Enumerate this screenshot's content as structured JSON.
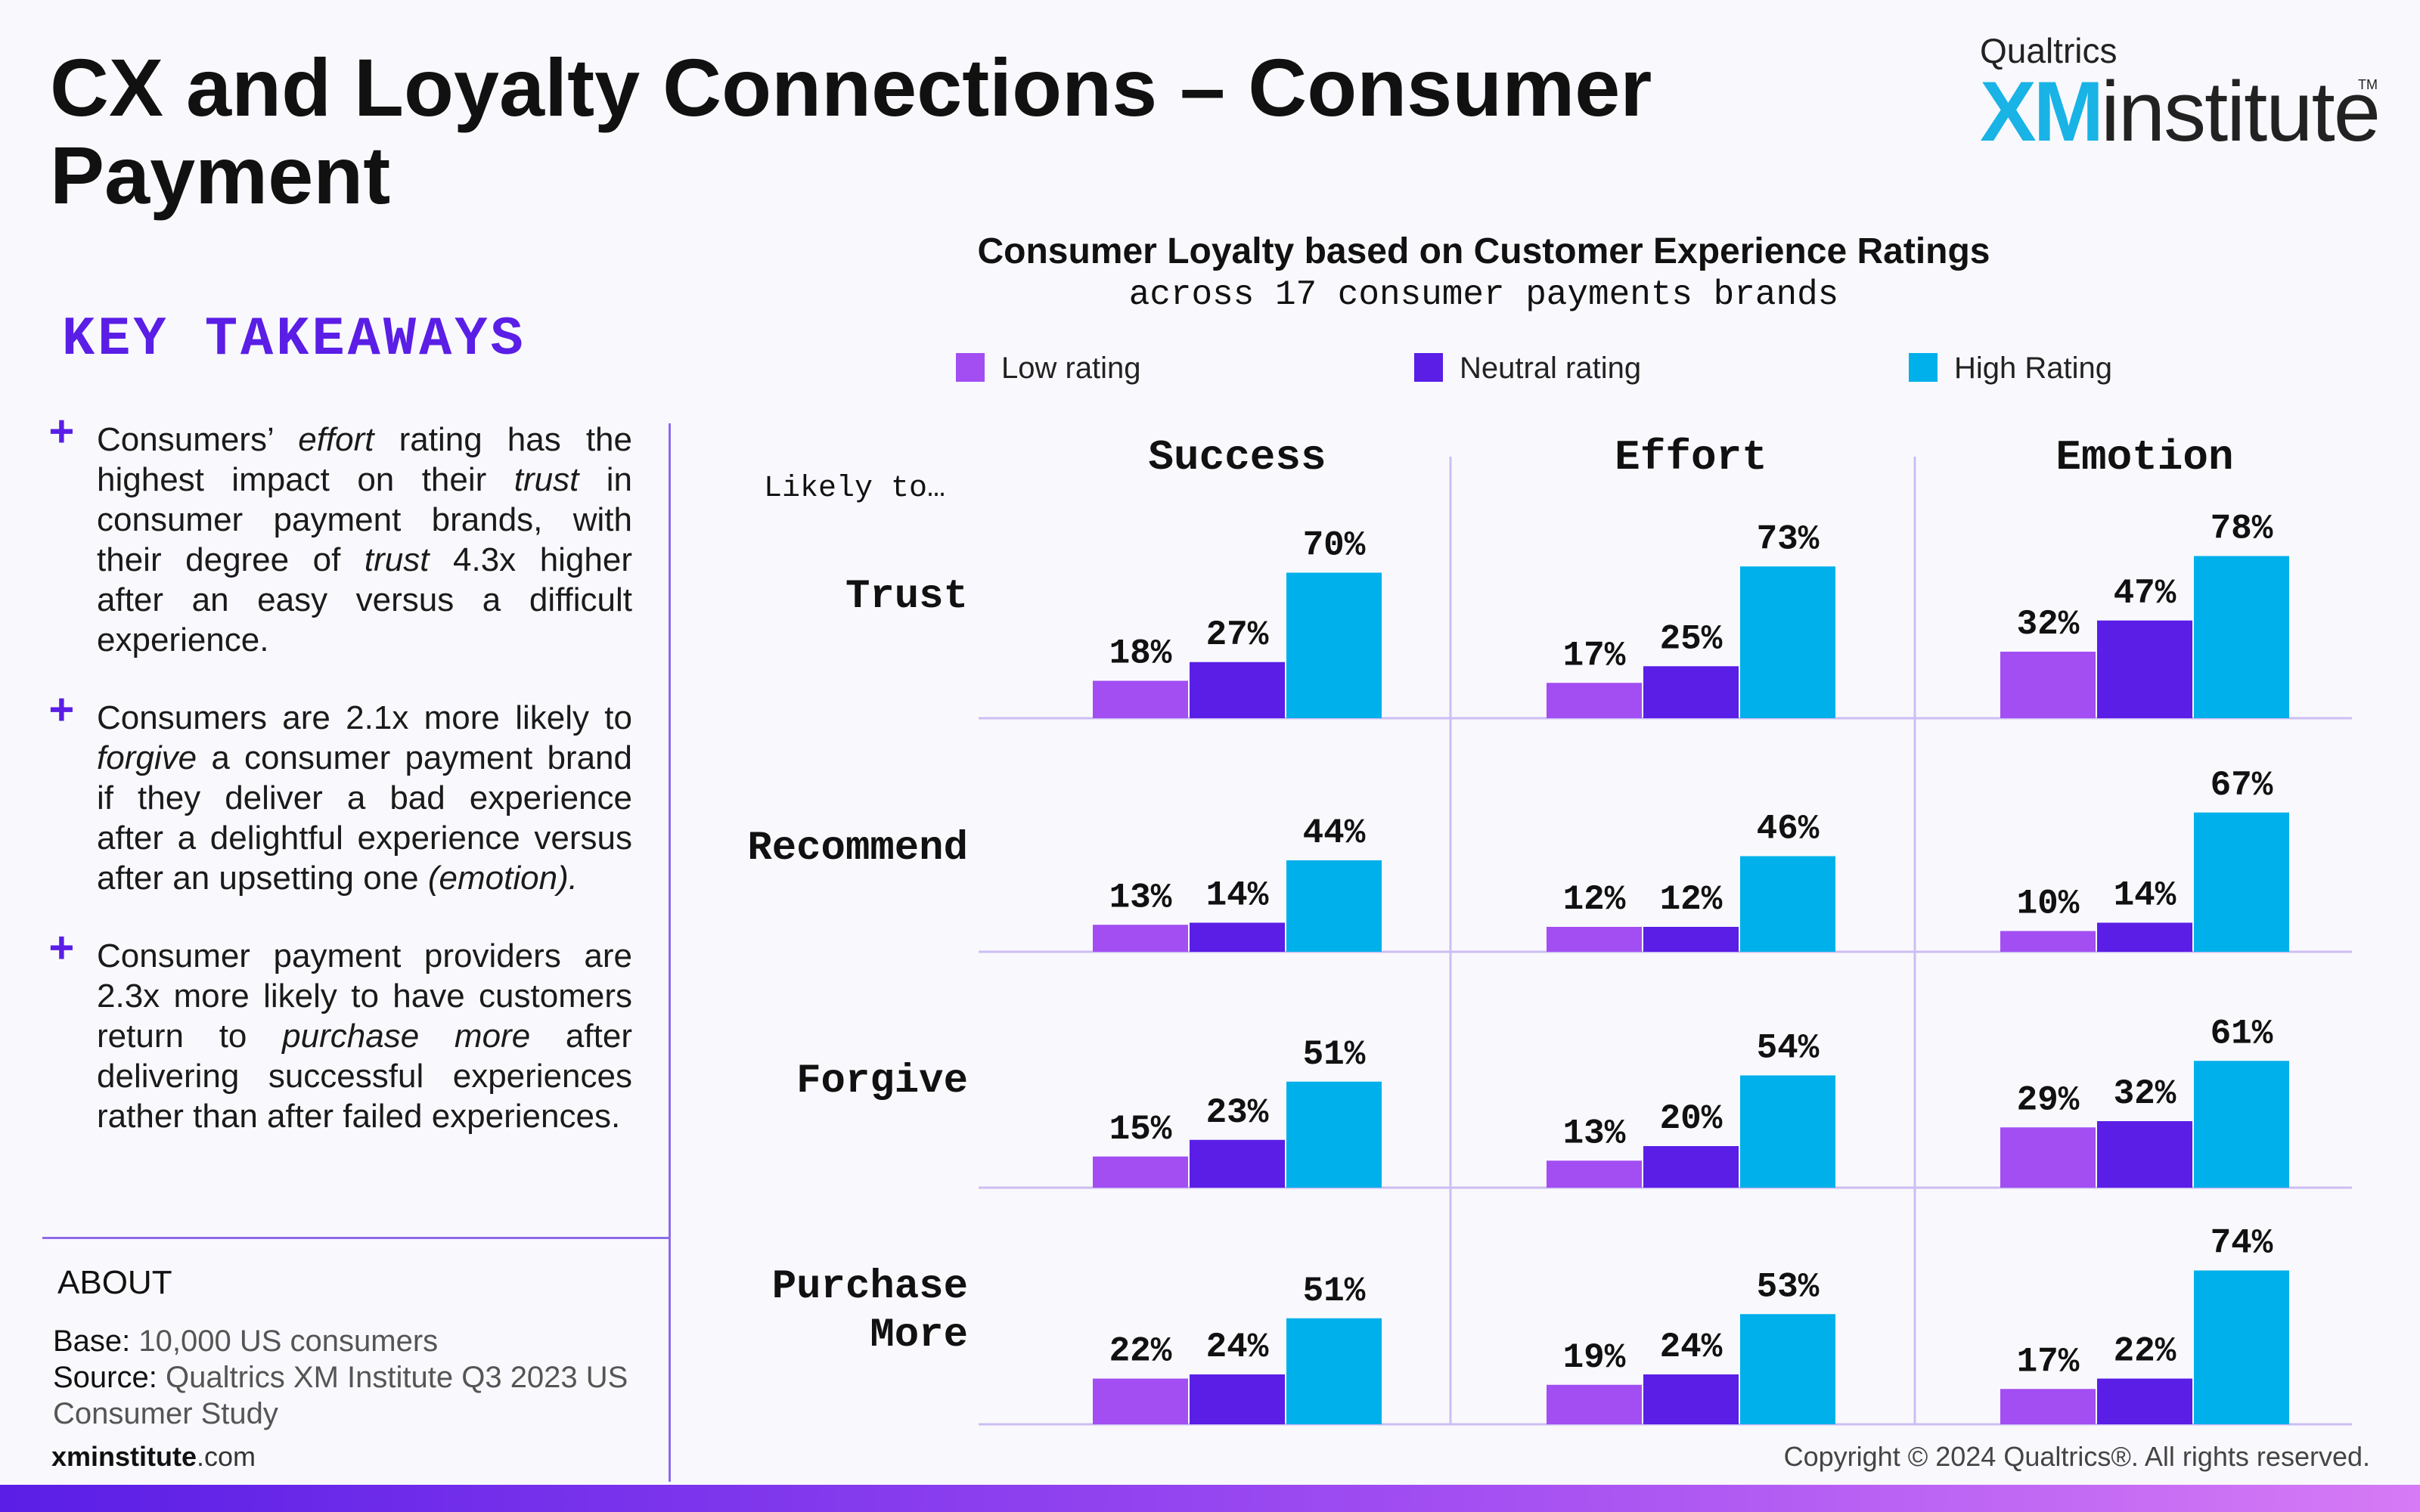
{
  "title": "CX and Loyalty Connections – Consumer Payment",
  "logo": {
    "brand": "Qualtrics",
    "xm": "XM",
    "institute": "institute",
    "tm": "TM"
  },
  "key_takeaways": {
    "title": "KEY TAKEAWAYS",
    "items": [
      "Consumers’ <em>effort</em> rating has the highest impact on their <em>trust</em> in consumer payment brands, with their degree of <em>trust</em> 4.3x higher after an easy versus a difficult experience.",
      "Consumers are 2.1x more likely to <em>forgive</em> a consumer payment brand if they deliver a bad experience after a delightful experience versus after an upsetting one <em>(emotion).</em>",
      "Consumer payment providers are 2.3x more likely to have customers return to <em>purchase more</em> after delivering successful experiences rather than after failed experiences."
    ]
  },
  "about": {
    "title": "ABOUT",
    "base_label": "Base:",
    "base_value": "10,000 US consumers",
    "source_label": "Source:",
    "source_value": "Qualtrics XM Institute Q3 2023 US Consumer Study"
  },
  "footer": {
    "url_bold": "xminstitute",
    "url_rest": ".com",
    "copyright": "Copyright © 2024 Qualtrics®. All rights reserved."
  },
  "colors": {
    "low": "#a24ef2",
    "neutral": "#5a1ee6",
    "high": "#00b0ea",
    "accent": "#5a1ee6",
    "divider": "#cdbdf3"
  },
  "chart_data": {
    "type": "bar",
    "title": "Consumer Loyalty based on Customer Experience Ratings",
    "subtitle": "across 17 consumer payments brands",
    "row_header": "Likely to…",
    "legend": [
      "Low rating",
      "Neutral rating",
      "High Rating"
    ],
    "columns": [
      "Success",
      "Effort",
      "Emotion"
    ],
    "rows": [
      "Trust",
      "Recommend",
      "Forgive",
      "Purchase More"
    ],
    "row_label_lines": [
      [
        "Trust"
      ],
      [
        "Recommend"
      ],
      [
        "Forgive"
      ],
      [
        "Purchase",
        "More"
      ]
    ],
    "value_suffix": "%",
    "values": [
      [
        [
          18,
          27,
          70
        ],
        [
          17,
          25,
          73
        ],
        [
          32,
          47,
          78
        ]
      ],
      [
        [
          13,
          14,
          44
        ],
        [
          12,
          12,
          46
        ],
        [
          10,
          14,
          67
        ]
      ],
      [
        [
          15,
          23,
          51
        ],
        [
          13,
          20,
          54
        ],
        [
          29,
          32,
          61
        ]
      ],
      [
        [
          22,
          24,
          51
        ],
        [
          19,
          24,
          53
        ],
        [
          17,
          22,
          74
        ]
      ]
    ]
  }
}
